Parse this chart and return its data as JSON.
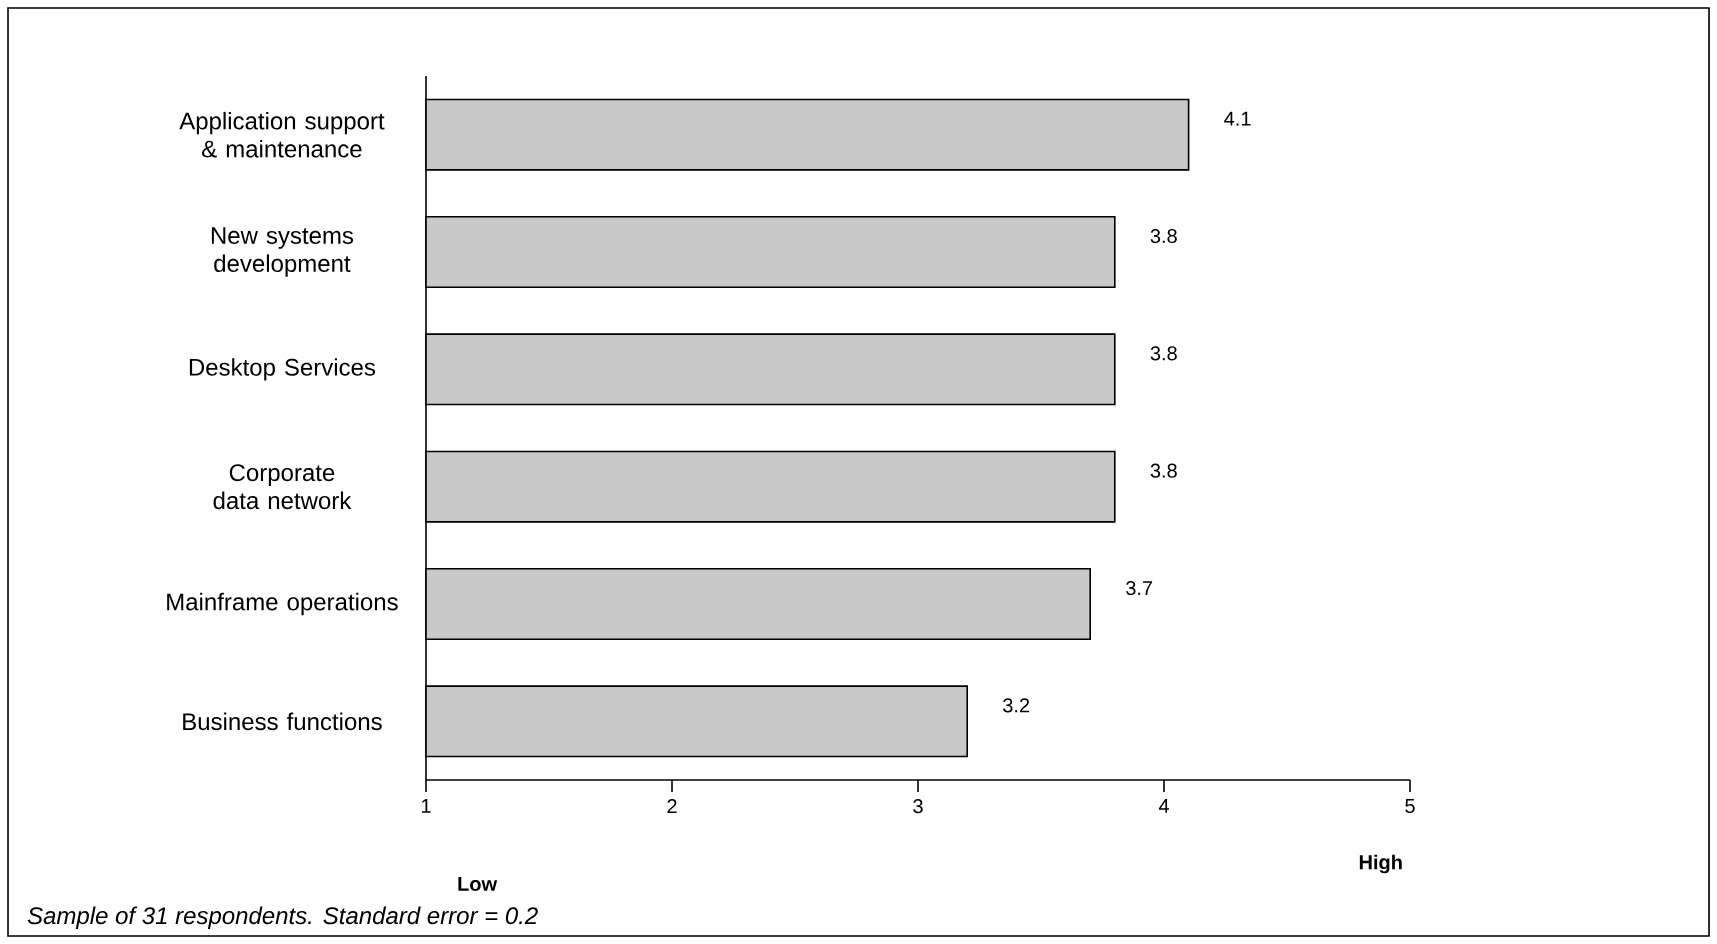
{
  "chart_data": {
    "type": "bar",
    "orientation": "horizontal",
    "categories": [
      "Application support & maintenance",
      "New systems development",
      "Desktop Services",
      "Corporate data network",
      "Mainframe operations",
      "Business functions"
    ],
    "values": [
      4.1,
      3.8,
      3.8,
      3.8,
      3.7,
      3.2
    ],
    "color": "#c8c8c8",
    "data_labels": true,
    "xlim": [
      1,
      5
    ],
    "xticks": [
      1,
      2,
      3,
      4,
      5
    ],
    "grid": false,
    "annotations": [
      "Low",
      "High",
      "Sample of 31 respondents. Standard error = 0.2"
    ]
  }
}
